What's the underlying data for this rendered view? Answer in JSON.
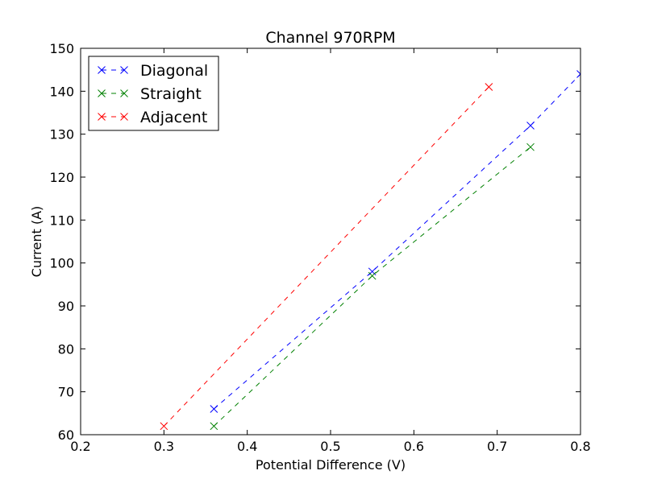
{
  "chart_data": {
    "type": "line",
    "title": "Channel 970RPM",
    "xlabel": "Potential Difference (V)",
    "ylabel": "Current (A)",
    "xlim": [
      0.2,
      0.8
    ],
    "ylim": [
      60,
      150
    ],
    "xticks": [
      0.2,
      0.3,
      0.4,
      0.5,
      0.6,
      0.7,
      0.8
    ],
    "yticks": [
      60,
      70,
      80,
      90,
      100,
      110,
      120,
      130,
      140,
      150
    ],
    "xtick_labels": [
      "0.2",
      "0.3",
      "0.4",
      "0.5",
      "0.6",
      "0.7",
      "0.8"
    ],
    "ytick_labels": [
      "60",
      "70",
      "80",
      "90",
      "100",
      "110",
      "120",
      "130",
      "140",
      "150"
    ],
    "grid": false,
    "legend_position": "top-left",
    "line_style": "dashed",
    "marker": "x",
    "series": [
      {
        "name": "Diagonal",
        "color": "#0000ff",
        "x": [
          0.36,
          0.55,
          0.74,
          0.8
        ],
        "y": [
          66,
          98,
          132,
          144
        ]
      },
      {
        "name": "Straight",
        "color": "#008000",
        "x": [
          0.36,
          0.55,
          0.74
        ],
        "y": [
          62,
          97,
          127
        ]
      },
      {
        "name": "Adjacent",
        "color": "#ff0000",
        "x": [
          0.3,
          0.69
        ],
        "y": [
          62,
          141
        ]
      }
    ]
  }
}
